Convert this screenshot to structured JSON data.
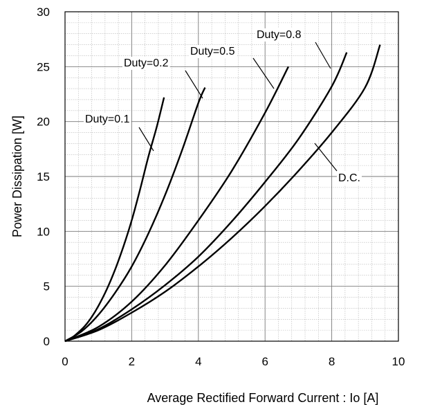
{
  "chart_data": {
    "type": "line",
    "xlabel": "Average Rectified Forward Current : Io [A]",
    "ylabel": "Power Dissipation [W]",
    "xlim": [
      0,
      10
    ],
    "ylim": [
      0,
      30
    ],
    "x_ticks": [
      0,
      2,
      4,
      6,
      8,
      10
    ],
    "y_ticks": [
      0,
      5,
      10,
      15,
      20,
      25,
      30
    ],
    "grid": true,
    "minor_grid": true,
    "series": [
      {
        "name": "Duty=0.1",
        "x": [
          0,
          0.2,
          0.4,
          0.6,
          0.8,
          1.0,
          1.25,
          1.5,
          1.75,
          2.0,
          2.25,
          2.5,
          2.75,
          2.97
        ],
        "y": [
          0,
          0.3,
          0.8,
          1.4,
          2.2,
          3.2,
          4.7,
          6.5,
          8.6,
          11.0,
          13.8,
          16.8,
          19.5,
          22.2
        ]
      },
      {
        "name": "Duty=0.2",
        "x": [
          0,
          0.5,
          1.0,
          1.5,
          2.0,
          2.5,
          3.0,
          3.5,
          4.0,
          4.2
        ],
        "y": [
          0,
          0.9,
          2.4,
          4.4,
          6.8,
          9.8,
          13.3,
          17.3,
          21.7,
          23.1
        ]
      },
      {
        "name": "Duty=0.5",
        "x": [
          0,
          1.0,
          2.0,
          3.0,
          4.0,
          5.0,
          6.0,
          6.7
        ],
        "y": [
          0,
          1.3,
          3.6,
          6.9,
          11.0,
          15.5,
          20.8,
          25.0
        ]
      },
      {
        "name": "Duty=0.8",
        "x": [
          0,
          1.0,
          2.0,
          3.0,
          4.0,
          5.0,
          6.0,
          7.0,
          8.0,
          8.45
        ],
        "y": [
          0,
          1.1,
          2.9,
          5.1,
          7.7,
          10.9,
          14.5,
          18.4,
          23.2,
          26.3
        ]
      },
      {
        "name": "D.C.",
        "x": [
          0,
          1.0,
          2.0,
          3.0,
          4.0,
          5.0,
          6.0,
          7.0,
          8.0,
          9.0,
          9.45
        ],
        "y": [
          0,
          1.0,
          2.6,
          4.5,
          6.8,
          9.4,
          12.3,
          15.5,
          19.0,
          23.1,
          27.0
        ]
      }
    ],
    "annotations": [
      {
        "text": "Duty=0.1",
        "series": "Duty=0.1"
      },
      {
        "text": "Duty=0.2",
        "series": "Duty=0.2"
      },
      {
        "text": "Duty=0.5",
        "series": "Duty=0.5"
      },
      {
        "text": "Duty=0.8",
        "series": "Duty=0.8"
      },
      {
        "text": "D.C.",
        "series": "D.C."
      }
    ]
  }
}
